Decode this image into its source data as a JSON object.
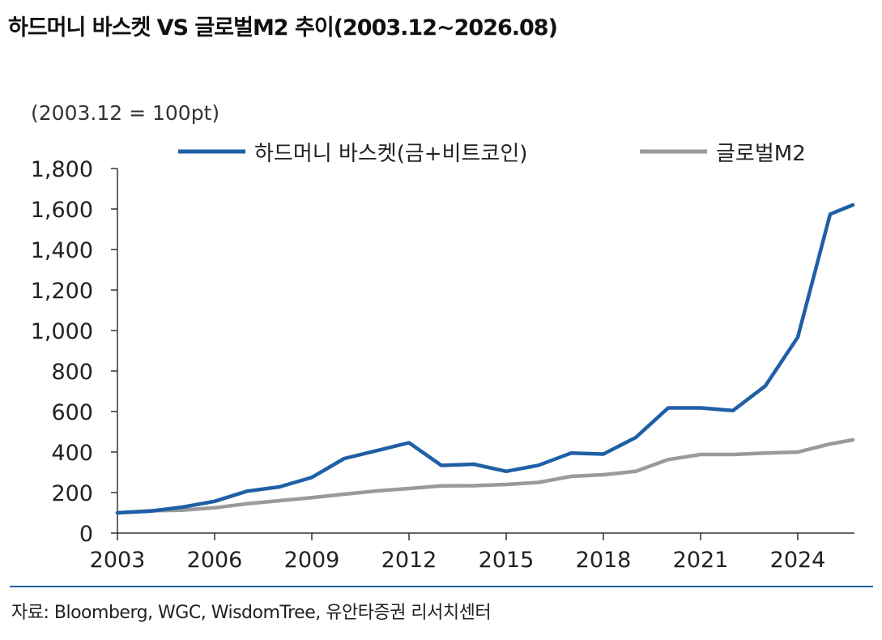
{
  "title": "하드머니 바스켓 VS 글로벌M2 추이(2003.12~2026.08)",
  "unit_note": "(2003.12 = 100pt)",
  "source": "자료: Bloomberg, WGC, WisdomTree, 유안타증권 리서치센터",
  "colors": {
    "hard_money": "#1f5fa6",
    "global_m2": "#9a9a9a",
    "source_rule": "#1f5fa6"
  },
  "chart_data": {
    "type": "line",
    "title": "하드머니 바스켓 VS 글로벌M2 추이(2003.12~2026.08)",
    "xlabel": "",
    "ylabel": "",
    "xlim": [
      2003,
      2025.6
    ],
    "ylim": [
      0,
      1800
    ],
    "x_ticks": [
      2003,
      2006,
      2009,
      2012,
      2015,
      2018,
      2021,
      2024
    ],
    "x_tick_labels": [
      "2003",
      "2006",
      "2009",
      "2012",
      "2015",
      "2018",
      "2021",
      "2024"
    ],
    "y_ticks": [
      0,
      200,
      400,
      600,
      800,
      1000,
      1200,
      1400,
      1600,
      1800
    ],
    "y_tick_labels": [
      "0",
      "200",
      "400",
      "600",
      "800",
      "1,000",
      "1,200",
      "1,400",
      "1,600",
      "1,800"
    ],
    "grid": false,
    "legend_position": "top",
    "series": [
      {
        "name": "하드머니 바스켓(금+비트코인)",
        "color": "#1f5fa6",
        "x": [
          2003,
          2004,
          2005,
          2006,
          2007,
          2008,
          2009,
          2010,
          2011,
          2012,
          2013,
          2014,
          2015,
          2016,
          2017,
          2018,
          2019,
          2020,
          2021,
          2022,
          2023,
          2024,
          2025,
          2025.7
        ],
        "y": [
          100,
          108,
          128,
          157,
          207,
          228,
          275,
          368,
          407,
          446,
          334,
          340,
          305,
          335,
          395,
          390,
          472,
          618,
          618,
          605,
          727,
          967,
          1575,
          1620
        ]
      },
      {
        "name": "글로벌M2",
        "color": "#9a9a9a",
        "x": [
          2003,
          2004,
          2005,
          2006,
          2007,
          2008,
          2009,
          2010,
          2011,
          2012,
          2013,
          2014,
          2015,
          2016,
          2017,
          2018,
          2019,
          2020,
          2021,
          2022,
          2023,
          2024,
          2025,
          2025.7
        ],
        "y": [
          100,
          110,
          113,
          125,
          145,
          160,
          175,
          192,
          208,
          220,
          233,
          234,
          240,
          250,
          280,
          288,
          305,
          363,
          388,
          388,
          395,
          400,
          440,
          460
        ]
      }
    ]
  }
}
